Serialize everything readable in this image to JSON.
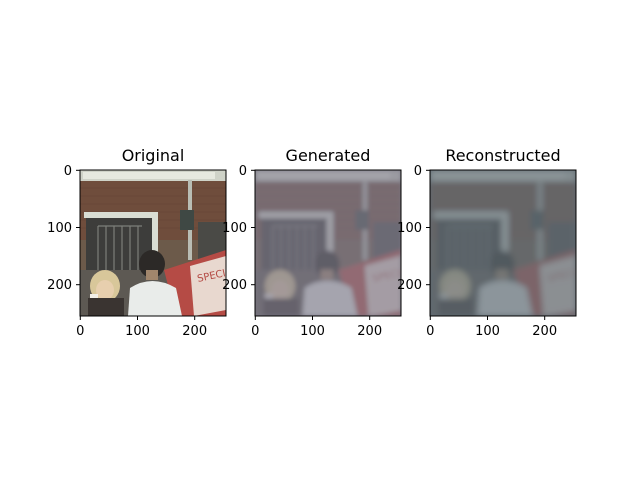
{
  "figure": {
    "panels": [
      {
        "title": "Original",
        "image": "street-scene-original",
        "x_ticks": [
          "0",
          "100",
          "200"
        ],
        "y_ticks": [
          "0",
          "100",
          "200"
        ]
      },
      {
        "title": "Generated",
        "image": "street-scene-generated",
        "x_ticks": [
          "0",
          "100",
          "200"
        ],
        "y_ticks": [
          "0",
          "100",
          "200"
        ]
      },
      {
        "title": "Reconstructed",
        "image": "street-scene-reconstructed",
        "x_ticks": [
          "0",
          "100",
          "200"
        ],
        "y_ticks": [
          "0",
          "100",
          "200"
        ]
      }
    ],
    "axis_range": [
      0,
      255
    ]
  }
}
